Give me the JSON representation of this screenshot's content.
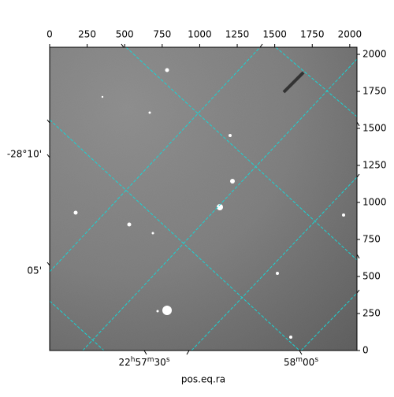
{
  "chart_data": {
    "type": "image",
    "xlim": [
      0,
      2048
    ],
    "ylim": [
      0,
      2048
    ],
    "xticks": [
      0,
      250,
      500,
      750,
      1000,
      1250,
      1500,
      1750,
      2000
    ],
    "yticks": [
      0,
      250,
      500,
      750,
      1000,
      1250,
      1500,
      1750,
      2000
    ],
    "ra_labels": [
      "22h57m30s",
      "58m00s"
    ],
    "dec_labels": [
      "-28°10'",
      "05'"
    ],
    "xlabel": "pos.eq.ra"
  }
}
